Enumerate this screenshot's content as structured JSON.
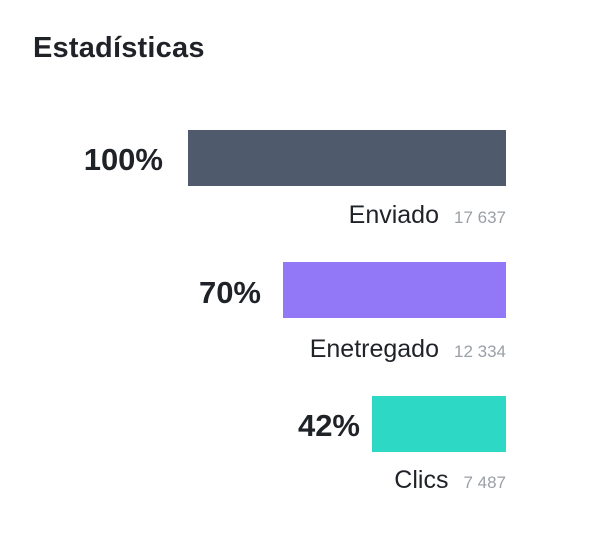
{
  "title": "Estadísticas",
  "colors": {
    "sent": "#4f5b6d",
    "delivered": "#9278f7",
    "clicks": "#2dd8c4"
  },
  "stats": [
    {
      "percent_label": "100%",
      "percent": 100,
      "label": "Enviado",
      "count": "17 637",
      "color_key": "sent"
    },
    {
      "percent_label": "70%",
      "percent": 70,
      "label": "Enetregado",
      "count": "12 334",
      "color_key": "delivered"
    },
    {
      "percent_label": "42%",
      "percent": 42,
      "label": "Clics",
      "count": "7 487",
      "color_key": "clicks"
    }
  ]
}
